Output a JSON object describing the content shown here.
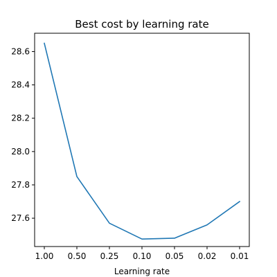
{
  "chart_data": {
    "type": "line",
    "title": "Best cost by learning rate",
    "xlabel": "Learning rate",
    "ylabel": "",
    "categories": [
      "1.00",
      "0.50",
      "0.25",
      "0.10",
      "0.05",
      "0.02",
      "0.01"
    ],
    "series": [
      {
        "values": [
          28.65,
          27.85,
          27.57,
          27.475,
          27.48,
          27.56,
          27.7
        ],
        "color": "#1f77b4"
      }
    ],
    "ylim": [
      27.43,
      28.71
    ],
    "yticks": [
      27.6,
      27.8,
      28.0,
      28.2,
      28.4,
      28.6
    ],
    "ytick_labels": [
      "27.6",
      "27.8",
      "28.0",
      "28.2",
      "28.4",
      "28.6"
    ],
    "grid": false,
    "legend": "none"
  }
}
